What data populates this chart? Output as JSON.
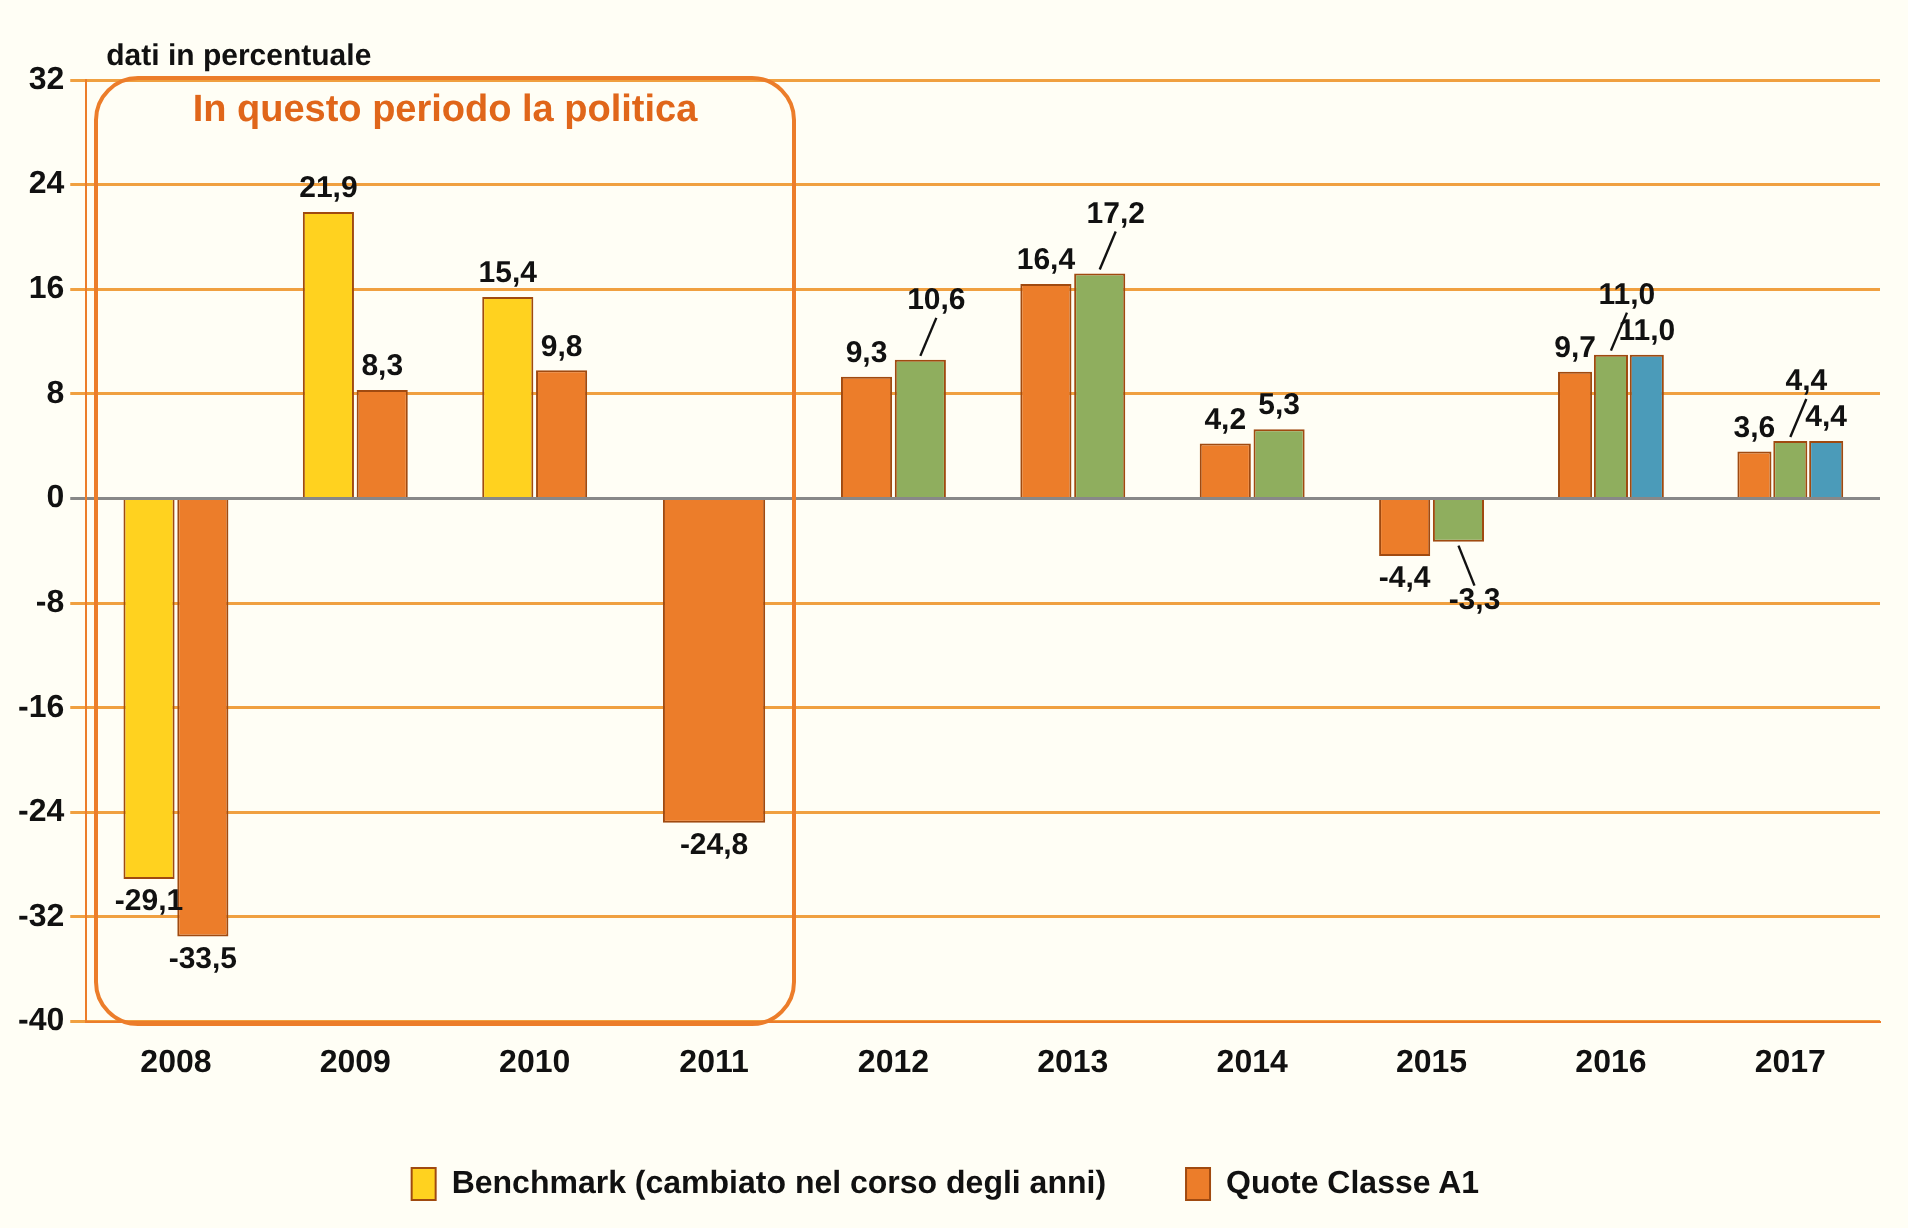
{
  "chart_data": {
    "type": "bar",
    "ylabel": "dati in percentuale",
    "categories": [
      "2008",
      "2009",
      "2010",
      "2011",
      "2012",
      "2013",
      "2014",
      "2015",
      "2016",
      "2017"
    ],
    "series": [
      {
        "name": "Benchmark (cambiato nel corso degli anni)",
        "color": "#ffd21f",
        "values": [
          -29.1,
          21.9,
          15.4,
          null,
          null,
          null,
          null,
          null,
          null,
          null
        ],
        "value_labels": [
          "-29,1",
          "21,9",
          "15,4",
          null,
          null,
          null,
          null,
          null,
          null,
          null
        ]
      },
      {
        "name": "Quote Classe A1",
        "color": "#ec7d2a",
        "values": [
          -33.5,
          8.3,
          9.8,
          -24.8,
          9.3,
          16.4,
          4.2,
          -4.4,
          9.7,
          3.6
        ],
        "value_labels": [
          "-33,5",
          "8,3",
          "9,8",
          "-24,8",
          "9,3",
          "16,4",
          "4,2",
          "-4,4",
          "9,7",
          "3,6"
        ]
      },
      {
        "color": "#8fae5e",
        "values": [
          null,
          null,
          null,
          null,
          10.6,
          17.2,
          5.3,
          -3.3,
          11.0,
          4.4
        ],
        "value_labels": [
          null,
          null,
          null,
          null,
          "10,6",
          "17,2",
          "5,3",
          "-3,3",
          "11,0",
          "4,4"
        ]
      },
      {
        "color": "#4b9bb9",
        "values": [
          null,
          null,
          null,
          null,
          null,
          null,
          null,
          null,
          11.0,
          4.4
        ],
        "value_labels": [
          null,
          null,
          null,
          null,
          null,
          null,
          null,
          null,
          "11,0",
          "4,4"
        ]
      }
    ],
    "ylim": [
      -40,
      32
    ],
    "yticks": [
      -40,
      -32,
      -24,
      -16,
      -8,
      0,
      8,
      16,
      24,
      32
    ],
    "grid": "y",
    "legend": "bottom",
    "annotations": [
      "In questo periodo la politica"
    ]
  }
}
